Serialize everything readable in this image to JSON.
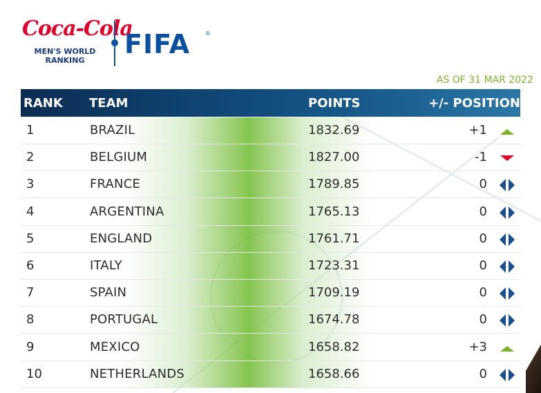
{
  "brand": {
    "coke_text": "Coca-Cola",
    "subtitle_line1": "MEN'S WORLD",
    "subtitle_line2": "RANKING",
    "fifa_text": "FIFA",
    "fifa_reg": "®",
    "colors": {
      "coke_red": "#e4002b",
      "fifa_blue": "#0a4fa0",
      "accent_green": "#7cb32a"
    }
  },
  "as_of": "AS OF 31 MAR 2022",
  "table": {
    "headers": {
      "rank": "RANK",
      "team": "TEAM",
      "points": "POINTS",
      "position": "+/- POSITION"
    },
    "rows": [
      {
        "rank": "1",
        "team": "BRAZIL",
        "points": "1832.69",
        "change": "+1",
        "trend": "up-arrow-icon"
      },
      {
        "rank": "2",
        "team": "BELGIUM",
        "points": "1827.00",
        "change": "-1",
        "trend": "down-arrow-icon"
      },
      {
        "rank": "3",
        "team": "FRANCE",
        "points": "1789.85",
        "change": "0",
        "trend": "no-change-icon"
      },
      {
        "rank": "4",
        "team": "ARGENTINA",
        "points": "1765.13",
        "change": "0",
        "trend": "no-change-icon"
      },
      {
        "rank": "5",
        "team": "ENGLAND",
        "points": "1761.71",
        "change": "0",
        "trend": "no-change-icon"
      },
      {
        "rank": "6",
        "team": "ITALY",
        "points": "1723.31",
        "change": "0",
        "trend": "no-change-icon"
      },
      {
        "rank": "7",
        "team": "SPAIN",
        "points": "1709.19",
        "change": "0",
        "trend": "no-change-icon"
      },
      {
        "rank": "8",
        "team": "PORTUGAL",
        "points": "1674.78",
        "change": "0",
        "trend": "no-change-icon"
      },
      {
        "rank": "9",
        "team": "MEXICO",
        "points": "1658.82",
        "change": "+3",
        "trend": "up-arrow-icon"
      },
      {
        "rank": "10",
        "team": "NETHERLANDS",
        "points": "1658.66",
        "change": "0",
        "trend": "no-change-icon"
      }
    ],
    "trend_colors": {
      "up": "#7cb32a",
      "down": "#e4002b",
      "same": "#1a4f8f"
    }
  }
}
